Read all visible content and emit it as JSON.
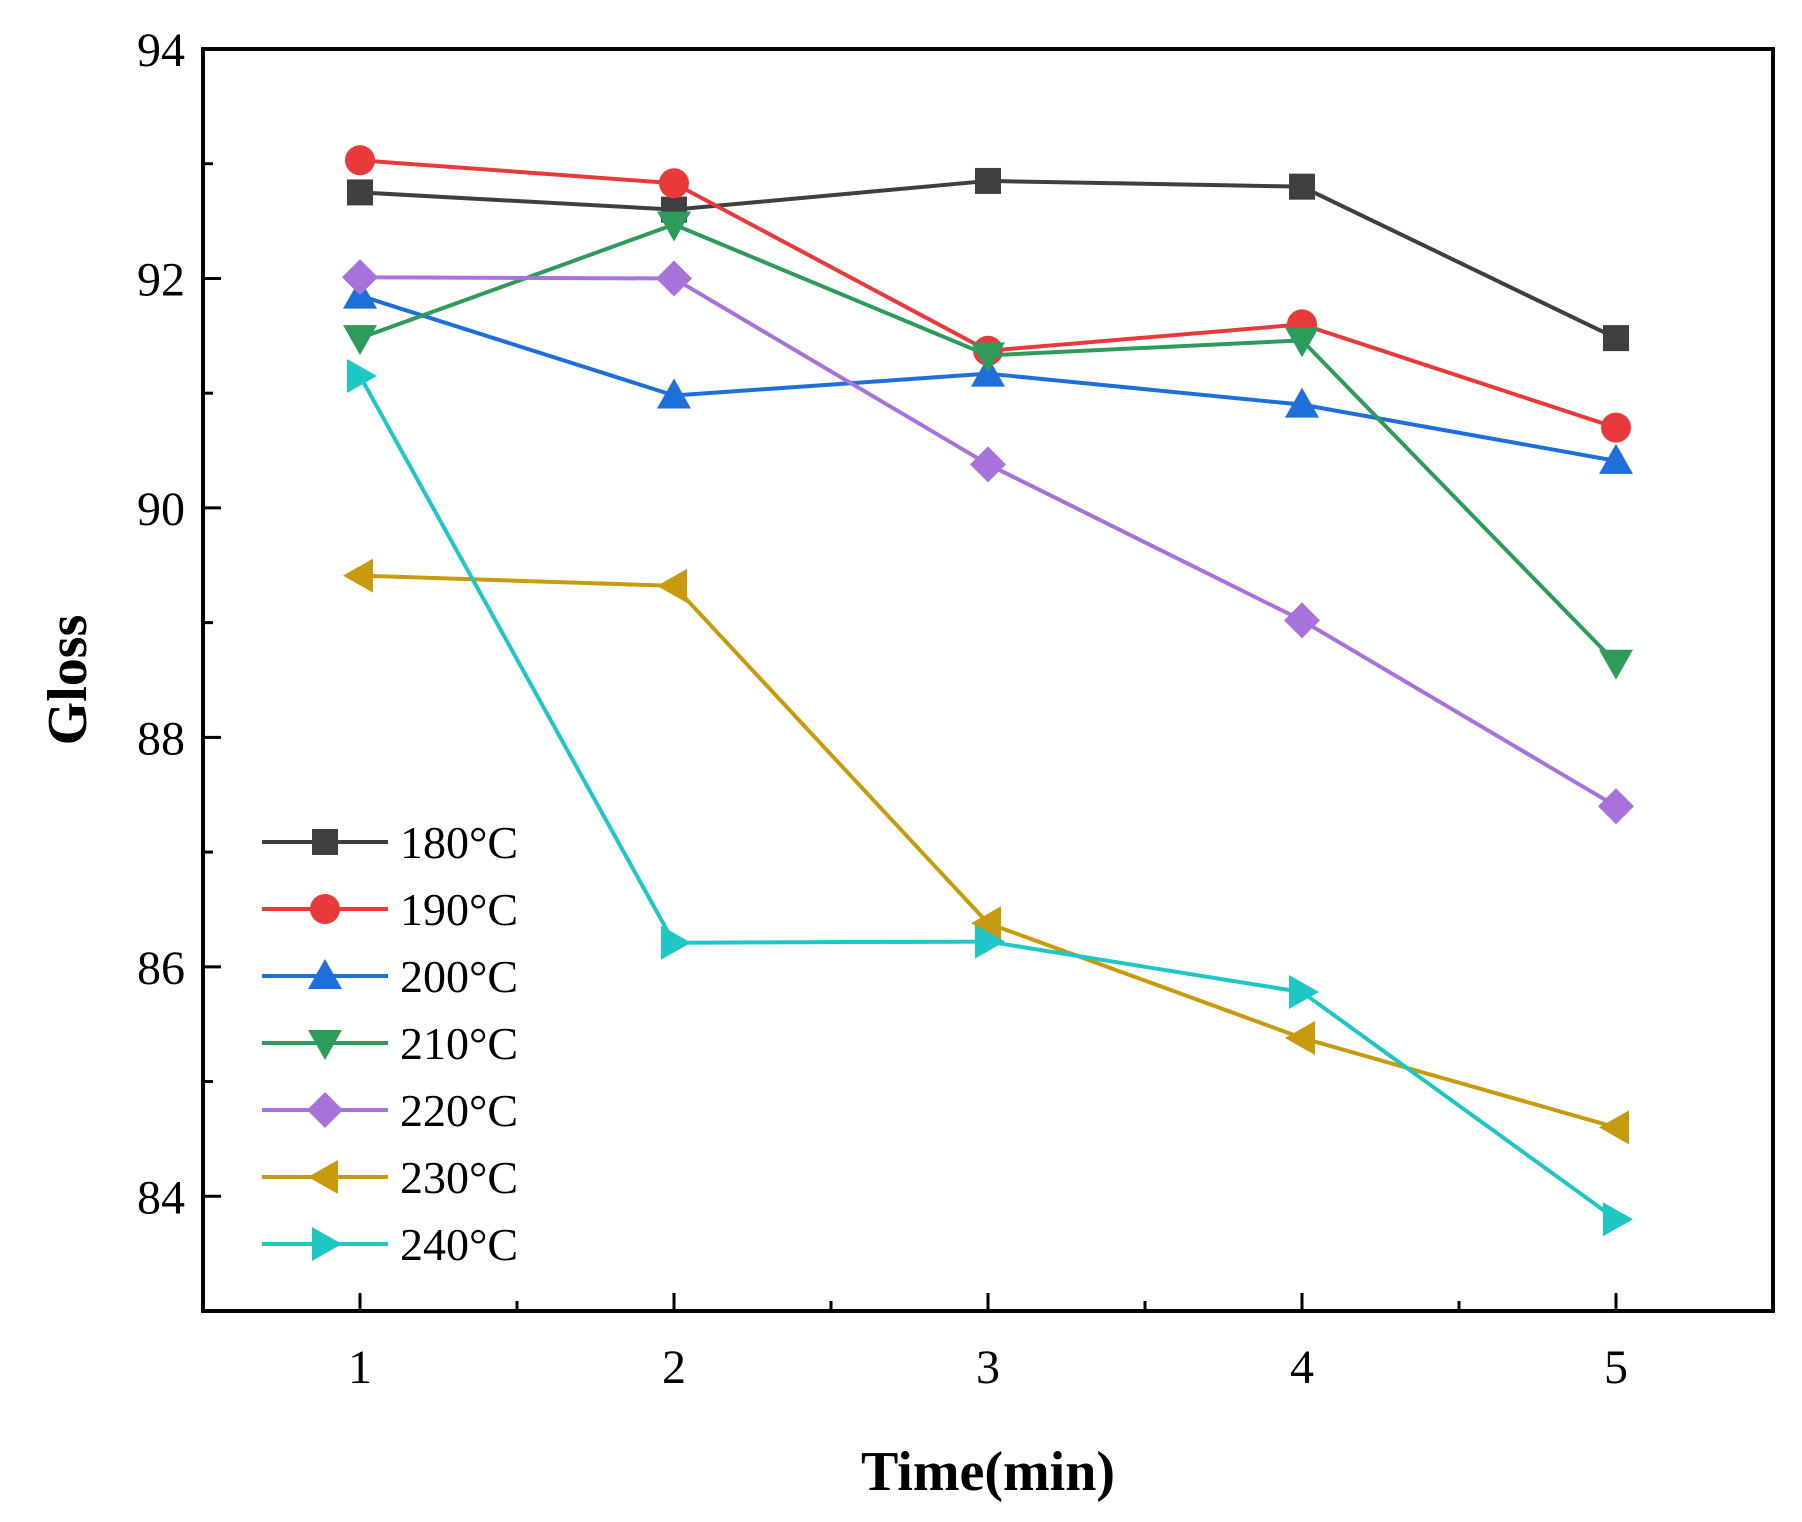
{
  "chart_data": {
    "type": "line",
    "title": "",
    "xlabel": "Time(min)",
    "ylabel": "Gloss",
    "x": [
      1,
      2,
      3,
      4,
      5
    ],
    "x_ticks": [
      "1",
      "2",
      "3",
      "4",
      "5"
    ],
    "y_ticks": [
      "84",
      "86",
      "88",
      "90",
      "92",
      "94"
    ],
    "xlim": [
      0.5,
      5.5
    ],
    "ylim": [
      83,
      94
    ],
    "grid": false,
    "legend_position": "bottom-left",
    "series": [
      {
        "name": "180°C",
        "marker": "square",
        "color": "#3f3f3f",
        "values": [
          92.75,
          92.6,
          92.85,
          92.8,
          91.48
        ]
      },
      {
        "name": "190°C",
        "marker": "circle",
        "color": "#e83a3a",
        "values": [
          93.03,
          92.83,
          91.37,
          91.6,
          90.7
        ]
      },
      {
        "name": "200°C",
        "marker": "triangle-up",
        "color": "#1f6fdb",
        "values": [
          91.85,
          90.98,
          91.17,
          90.9,
          90.41
        ]
      },
      {
        "name": "210°C",
        "marker": "triangle-down",
        "color": "#2e9b5a",
        "values": [
          91.48,
          92.47,
          91.33,
          91.46,
          88.65
        ]
      },
      {
        "name": "220°C",
        "marker": "diamond",
        "color": "#a872db",
        "values": [
          92.01,
          92.0,
          90.38,
          89.02,
          87.4
        ]
      },
      {
        "name": "230°C",
        "marker": "triangle-left",
        "color": "#c89a0e",
        "values": [
          89.41,
          89.32,
          86.38,
          85.38,
          84.6
        ]
      },
      {
        "name": "240°C",
        "marker": "triangle-right",
        "color": "#1fc6c6",
        "values": [
          91.15,
          86.21,
          86.22,
          85.78,
          83.8
        ]
      }
    ]
  }
}
